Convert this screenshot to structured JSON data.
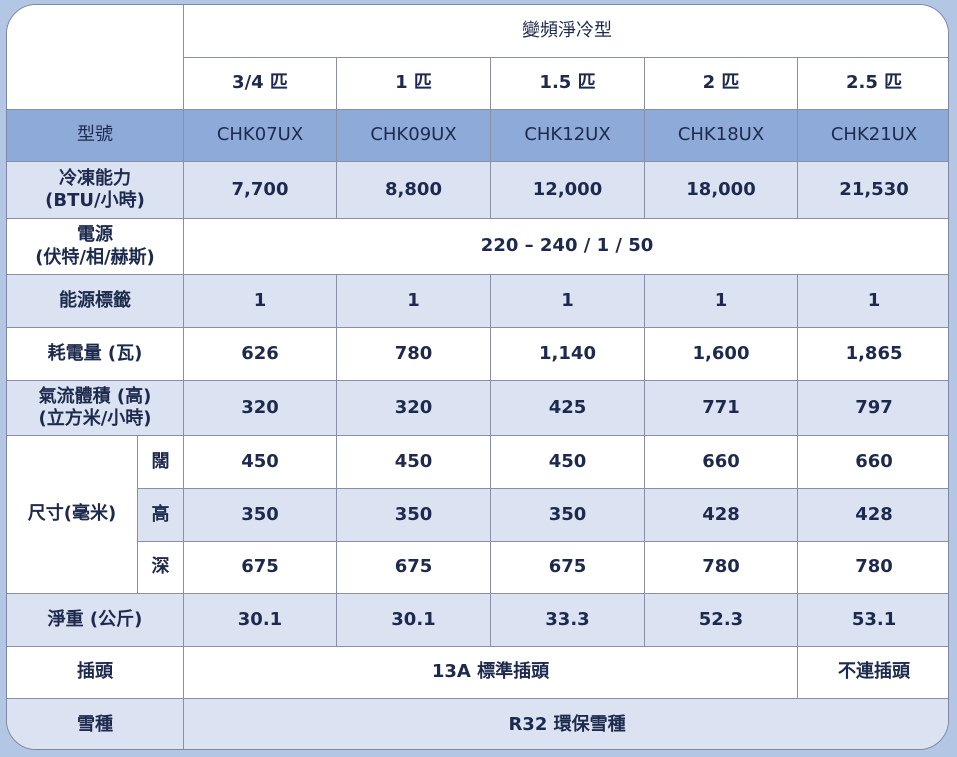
{
  "header": {
    "group": "變頻淨冷型",
    "sizes": [
      "3/4 匹",
      "1 匹",
      "1.5 匹",
      "2 匹",
      "2.5 匹"
    ]
  },
  "rows": {
    "model": {
      "label": "型號",
      "values": [
        "CHK07UX",
        "CHK09UX",
        "CHK12UX",
        "CHK18UX",
        "CHK21UX"
      ]
    },
    "capacity": {
      "label1": "冷凍能力",
      "label2": "(BTU/小時)",
      "values": [
        "7,700",
        "8,800",
        "12,000",
        "18,000",
        "21,530"
      ]
    },
    "power": {
      "label1": "電源",
      "label2": "(伏特/相/赫斯)",
      "value": "220 – 240 / 1 / 50"
    },
    "energy_label": {
      "label": "能源標籤",
      "values": [
        "1",
        "1",
        "1",
        "1",
        "1"
      ]
    },
    "consumption": {
      "label": "耗電量 (瓦)",
      "values": [
        "626",
        "780",
        "1,140",
        "1,600",
        "1,865"
      ]
    },
    "airflow": {
      "label1": "氣流體積 (高)",
      "label2": "(立方米/小時)",
      "values": [
        "320",
        "320",
        "425",
        "771",
        "797"
      ]
    },
    "dimensions": {
      "label": "尺寸(毫米)",
      "width": {
        "label": "闊",
        "values": [
          "450",
          "450",
          "450",
          "660",
          "660"
        ]
      },
      "height": {
        "label": "高",
        "values": [
          "350",
          "350",
          "350",
          "428",
          "428"
        ]
      },
      "depth": {
        "label": "深",
        "values": [
          "675",
          "675",
          "675",
          "780",
          "780"
        ]
      }
    },
    "weight": {
      "label": "淨重 (公斤)",
      "values": [
        "30.1",
        "30.1",
        "33.3",
        "52.3",
        "53.1"
      ]
    },
    "plug": {
      "label": "插頭",
      "standard": "13A 標準插頭",
      "none": "不連插頭"
    },
    "refrigerant": {
      "label": "雪種",
      "value": "R32 環保雪種"
    }
  },
  "colors": {
    "background": "#b3c7e5",
    "model_row": "#8eaad8",
    "alt_row": "#dbe3f2",
    "text": "#1e2a4d"
  }
}
